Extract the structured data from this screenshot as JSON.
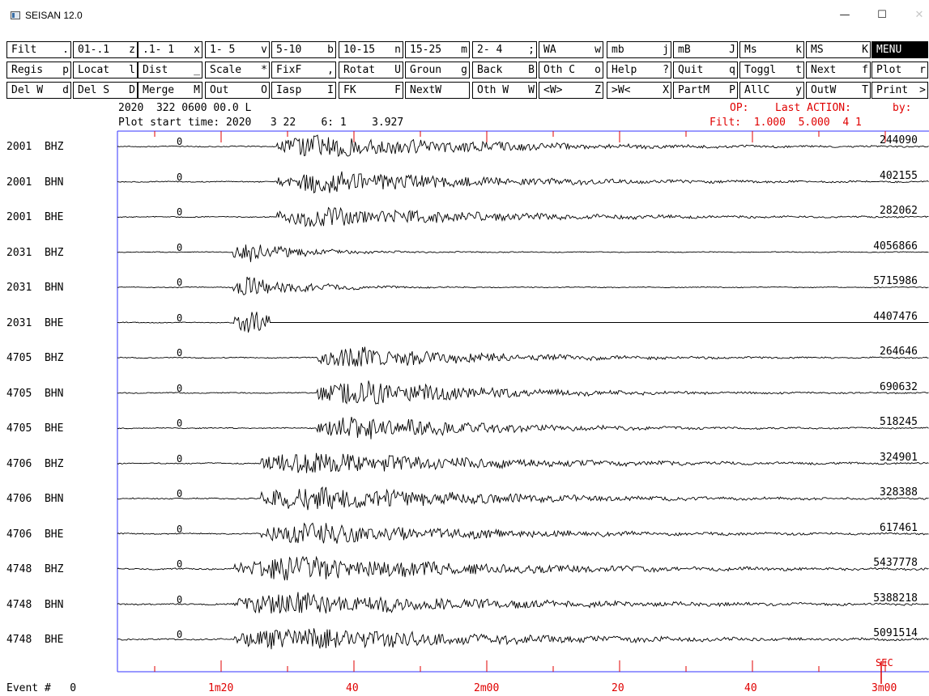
{
  "window": {
    "title": "SEISAN 12.0",
    "minimize_glyph": "—",
    "maximize_glyph": "☐",
    "close_glyph": "✕"
  },
  "toolbar": {
    "rows": [
      [
        {
          "name": "filt",
          "label": "Filt",
          "key": "."
        },
        {
          "name": "filt-01-1",
          "label": "01-.1",
          "key": "z"
        },
        {
          "name": "filt-1-1",
          "label": ".1- 1",
          "key": "x"
        },
        {
          "name": "filt-1-5",
          "label": "1- 5",
          "key": "v"
        },
        {
          "name": "filt-5-10",
          "label": "5-10",
          "key": "b"
        },
        {
          "name": "filt-10-15",
          "label": "10-15",
          "key": "n"
        },
        {
          "name": "filt-15-25",
          "label": "15-25",
          "key": "m"
        },
        {
          "name": "filt-2-4",
          "label": "2- 4",
          "key": ";"
        },
        {
          "name": "wa",
          "label": "WA",
          "key": "w"
        },
        {
          "name": "mb",
          "label": "mb",
          "key": "j"
        },
        {
          "name": "mb-upper",
          "label": "mB",
          "key": "J"
        },
        {
          "name": "ms",
          "label": "Ms",
          "key": "k"
        },
        {
          "name": "ms-upper",
          "label": "MS",
          "key": "K"
        },
        {
          "name": "menu",
          "label": "MENU",
          "key": ""
        }
      ],
      [
        {
          "name": "regis",
          "label": "Regis",
          "key": "p"
        },
        {
          "name": "locat",
          "label": "Locat",
          "key": "l"
        },
        {
          "name": "dist",
          "label": "Dist",
          "key": "_"
        },
        {
          "name": "scale",
          "label": "Scale",
          "key": "*"
        },
        {
          "name": "fixf",
          "label": "FixF",
          "key": ","
        },
        {
          "name": "rotat",
          "label": "Rotat",
          "key": "U"
        },
        {
          "name": "groun",
          "label": "Groun",
          "key": "g"
        },
        {
          "name": "back",
          "label": "Back",
          "key": "B"
        },
        {
          "name": "oth-c",
          "label": "Oth C",
          "key": "o"
        },
        {
          "name": "help",
          "label": "Help",
          "key": "?"
        },
        {
          "name": "quit",
          "label": "Quit",
          "key": "q"
        },
        {
          "name": "toggl",
          "label": "Toggl",
          "key": "t"
        },
        {
          "name": "next",
          "label": "Next",
          "key": "f"
        },
        {
          "name": "plot",
          "label": "Plot",
          "key": "r"
        }
      ],
      [
        {
          "name": "del-w",
          "label": "Del W",
          "key": "d"
        },
        {
          "name": "del-s",
          "label": "Del S",
          "key": "D"
        },
        {
          "name": "merge",
          "label": "Merge",
          "key": "M"
        },
        {
          "name": "out",
          "label": "Out",
          "key": "O"
        },
        {
          "name": "iasp",
          "label": "Iasp",
          "key": "I"
        },
        {
          "name": "fk",
          "label": "FK",
          "key": "F"
        },
        {
          "name": "nextw",
          "label": "NextW",
          "key": ""
        },
        {
          "name": "oth-w",
          "label": "Oth W",
          "key": "W"
        },
        {
          "name": "w-in",
          "label": "<W>",
          "key": "Z"
        },
        {
          "name": "w-out",
          "label": ">W<",
          "key": "X"
        },
        {
          "name": "partm",
          "label": "PartM",
          "key": "P"
        },
        {
          "name": "allc",
          "label": "AllC",
          "key": "y"
        },
        {
          "name": "outw",
          "label": "OutW",
          "key": "T"
        },
        {
          "name": "print",
          "label": "Print",
          "key": ">"
        }
      ]
    ]
  },
  "header": {
    "event_time": "2020  322 0600 00.0 L",
    "plot_start": "Plot start time: 2020   3 22    6: 1    3.927",
    "op_label": "OP:",
    "last_action_label": "Last ACTION:",
    "by_label": "by:",
    "filt_label": "Filt:  1.000  5.000  4 1"
  },
  "channels": [
    {
      "station": "2001",
      "component": "BHZ",
      "zero": "0",
      "max_amp": "244090"
    },
    {
      "station": "2001",
      "component": "BHN",
      "zero": "0",
      "max_amp": "402155"
    },
    {
      "station": "2001",
      "component": "BHE",
      "zero": "0",
      "max_amp": "282062"
    },
    {
      "station": "2031",
      "component": "BHZ",
      "zero": "0",
      "max_amp": "4056866"
    },
    {
      "station": "2031",
      "component": "BHN",
      "zero": "0",
      "max_amp": "5715986"
    },
    {
      "station": "2031",
      "component": "BHE",
      "zero": "0",
      "max_amp": "4407476"
    },
    {
      "station": "4705",
      "component": "BHZ",
      "zero": "0",
      "max_amp": "264646"
    },
    {
      "station": "4705",
      "component": "BHN",
      "zero": "0",
      "max_amp": "690632"
    },
    {
      "station": "4705",
      "component": "BHE",
      "zero": "0",
      "max_amp": "518245"
    },
    {
      "station": "4706",
      "component": "BHZ",
      "zero": "0",
      "max_amp": "324901"
    },
    {
      "station": "4706",
      "component": "BHN",
      "zero": "0",
      "max_amp": "328388"
    },
    {
      "station": "4706",
      "component": "BHE",
      "zero": "0",
      "max_amp": "617461"
    },
    {
      "station": "4748",
      "component": "BHZ",
      "zero": "0",
      "max_amp": "5437778"
    },
    {
      "station": "4748",
      "component": "BHN",
      "zero": "0",
      "max_amp": "5388218"
    },
    {
      "station": "4748",
      "component": "BHE",
      "zero": "0",
      "max_amp": "5091514"
    }
  ],
  "time_axis": {
    "labels": [
      "1m20",
      "40",
      "2m00",
      "20",
      "40",
      "3m00"
    ],
    "unit": "SEC"
  },
  "footer": {
    "event_label": "Event #",
    "event_number": "0"
  },
  "colors": {
    "axis_frame": "#3333ff",
    "ticks_and_labels": "#e00000",
    "trace": "#000000"
  }
}
